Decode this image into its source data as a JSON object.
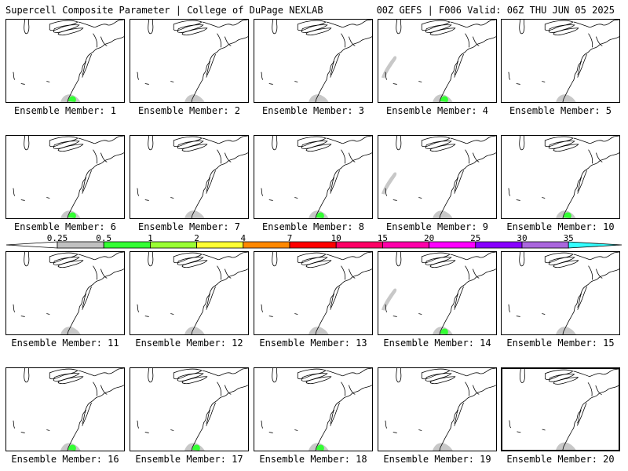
{
  "header": {
    "title": "Supercell Composite Parameter | College of DuPage NEXLAB",
    "run_info": "00Z GEFS | F006 Valid: 06Z THU JUN 05 2025"
  },
  "member_label_prefix": "Ensemble Member:",
  "members": [
    {
      "label": "Ensemble Member: 1",
      "shading": [
        {
          "level": 0.5,
          "region": "southeast"
        }
      ]
    },
    {
      "label": "Ensemble Member: 2",
      "shading": [
        {
          "level": 0.25,
          "region": "southeast"
        }
      ]
    },
    {
      "label": "Ensemble Member: 3",
      "shading": [
        {
          "level": 0.25,
          "region": "southeast"
        }
      ]
    },
    {
      "label": "Ensemble Member: 4",
      "shading": [
        {
          "level": 0.5,
          "region": "southeast"
        },
        {
          "level": 0.25,
          "region": "plains"
        }
      ]
    },
    {
      "label": "Ensemble Member: 5",
      "shading": [
        {
          "level": 0.25,
          "region": "southeast"
        }
      ]
    },
    {
      "label": "Ensemble Member: 6",
      "shading": [
        {
          "level": 0.5,
          "region": "southeast"
        }
      ]
    },
    {
      "label": "Ensemble Member: 7",
      "shading": [
        {
          "level": 0.25,
          "region": "southeast"
        }
      ]
    },
    {
      "label": "Ensemble Member: 8",
      "shading": [
        {
          "level": 0.5,
          "region": "southeast"
        }
      ]
    },
    {
      "label": "Ensemble Member: 9",
      "shading": [
        {
          "level": 0.25,
          "region": "southeast"
        },
        {
          "level": 0.25,
          "region": "plains"
        }
      ]
    },
    {
      "label": "Ensemble Member: 10",
      "shading": [
        {
          "level": 0.5,
          "region": "southeast"
        }
      ]
    },
    {
      "label": "Ensemble Member: 11",
      "shading": [
        {
          "level": 0.25,
          "region": "southeast"
        }
      ]
    },
    {
      "label": "Ensemble Member: 12",
      "shading": [
        {
          "level": 0.25,
          "region": "southeast"
        }
      ]
    },
    {
      "label": "Ensemble Member: 13",
      "shading": [
        {
          "level": 0.25,
          "region": "southeast"
        }
      ]
    },
    {
      "label": "Ensemble Member: 14",
      "shading": [
        {
          "level": 0.5,
          "region": "southeast"
        },
        {
          "level": 0.25,
          "region": "plains"
        }
      ]
    },
    {
      "label": "Ensemble Member: 15",
      "shading": [
        {
          "level": 0.25,
          "region": "southeast"
        }
      ]
    },
    {
      "label": "Ensemble Member: 16",
      "shading": [
        {
          "level": 0.5,
          "region": "southeast"
        }
      ]
    },
    {
      "label": "Ensemble Member: 17",
      "shading": [
        {
          "level": 0.5,
          "region": "southeast"
        }
      ]
    },
    {
      "label": "Ensemble Member: 18",
      "shading": [
        {
          "level": 0.5,
          "region": "southeast"
        }
      ]
    },
    {
      "label": "Ensemble Member: 19",
      "shading": [
        {
          "level": 0.25,
          "region": "southeast"
        }
      ]
    },
    {
      "label": "Ensemble Member: 20",
      "shading": [
        {
          "level": 0.25,
          "region": "southeast"
        }
      ],
      "selected": true
    }
  ],
  "colorbar": {
    "levels": [
      "0.25",
      "0.5",
      "1",
      "2",
      "4",
      "7",
      "10",
      "15",
      "20",
      "25",
      "30",
      "35"
    ],
    "colors": [
      "#c0c0c0",
      "#33ff33",
      "#99ff33",
      "#ffff33",
      "#ff8800",
      "#ff0000",
      "#ff0066",
      "#ff00aa",
      "#ff00ff",
      "#8800ff",
      "#aa66dd",
      "#33ffff"
    ]
  },
  "map": {
    "coastline_color": "#000000",
    "shading_colors": {
      "0.25": "#c8c8c8",
      "0.5": "#33ff33"
    }
  }
}
